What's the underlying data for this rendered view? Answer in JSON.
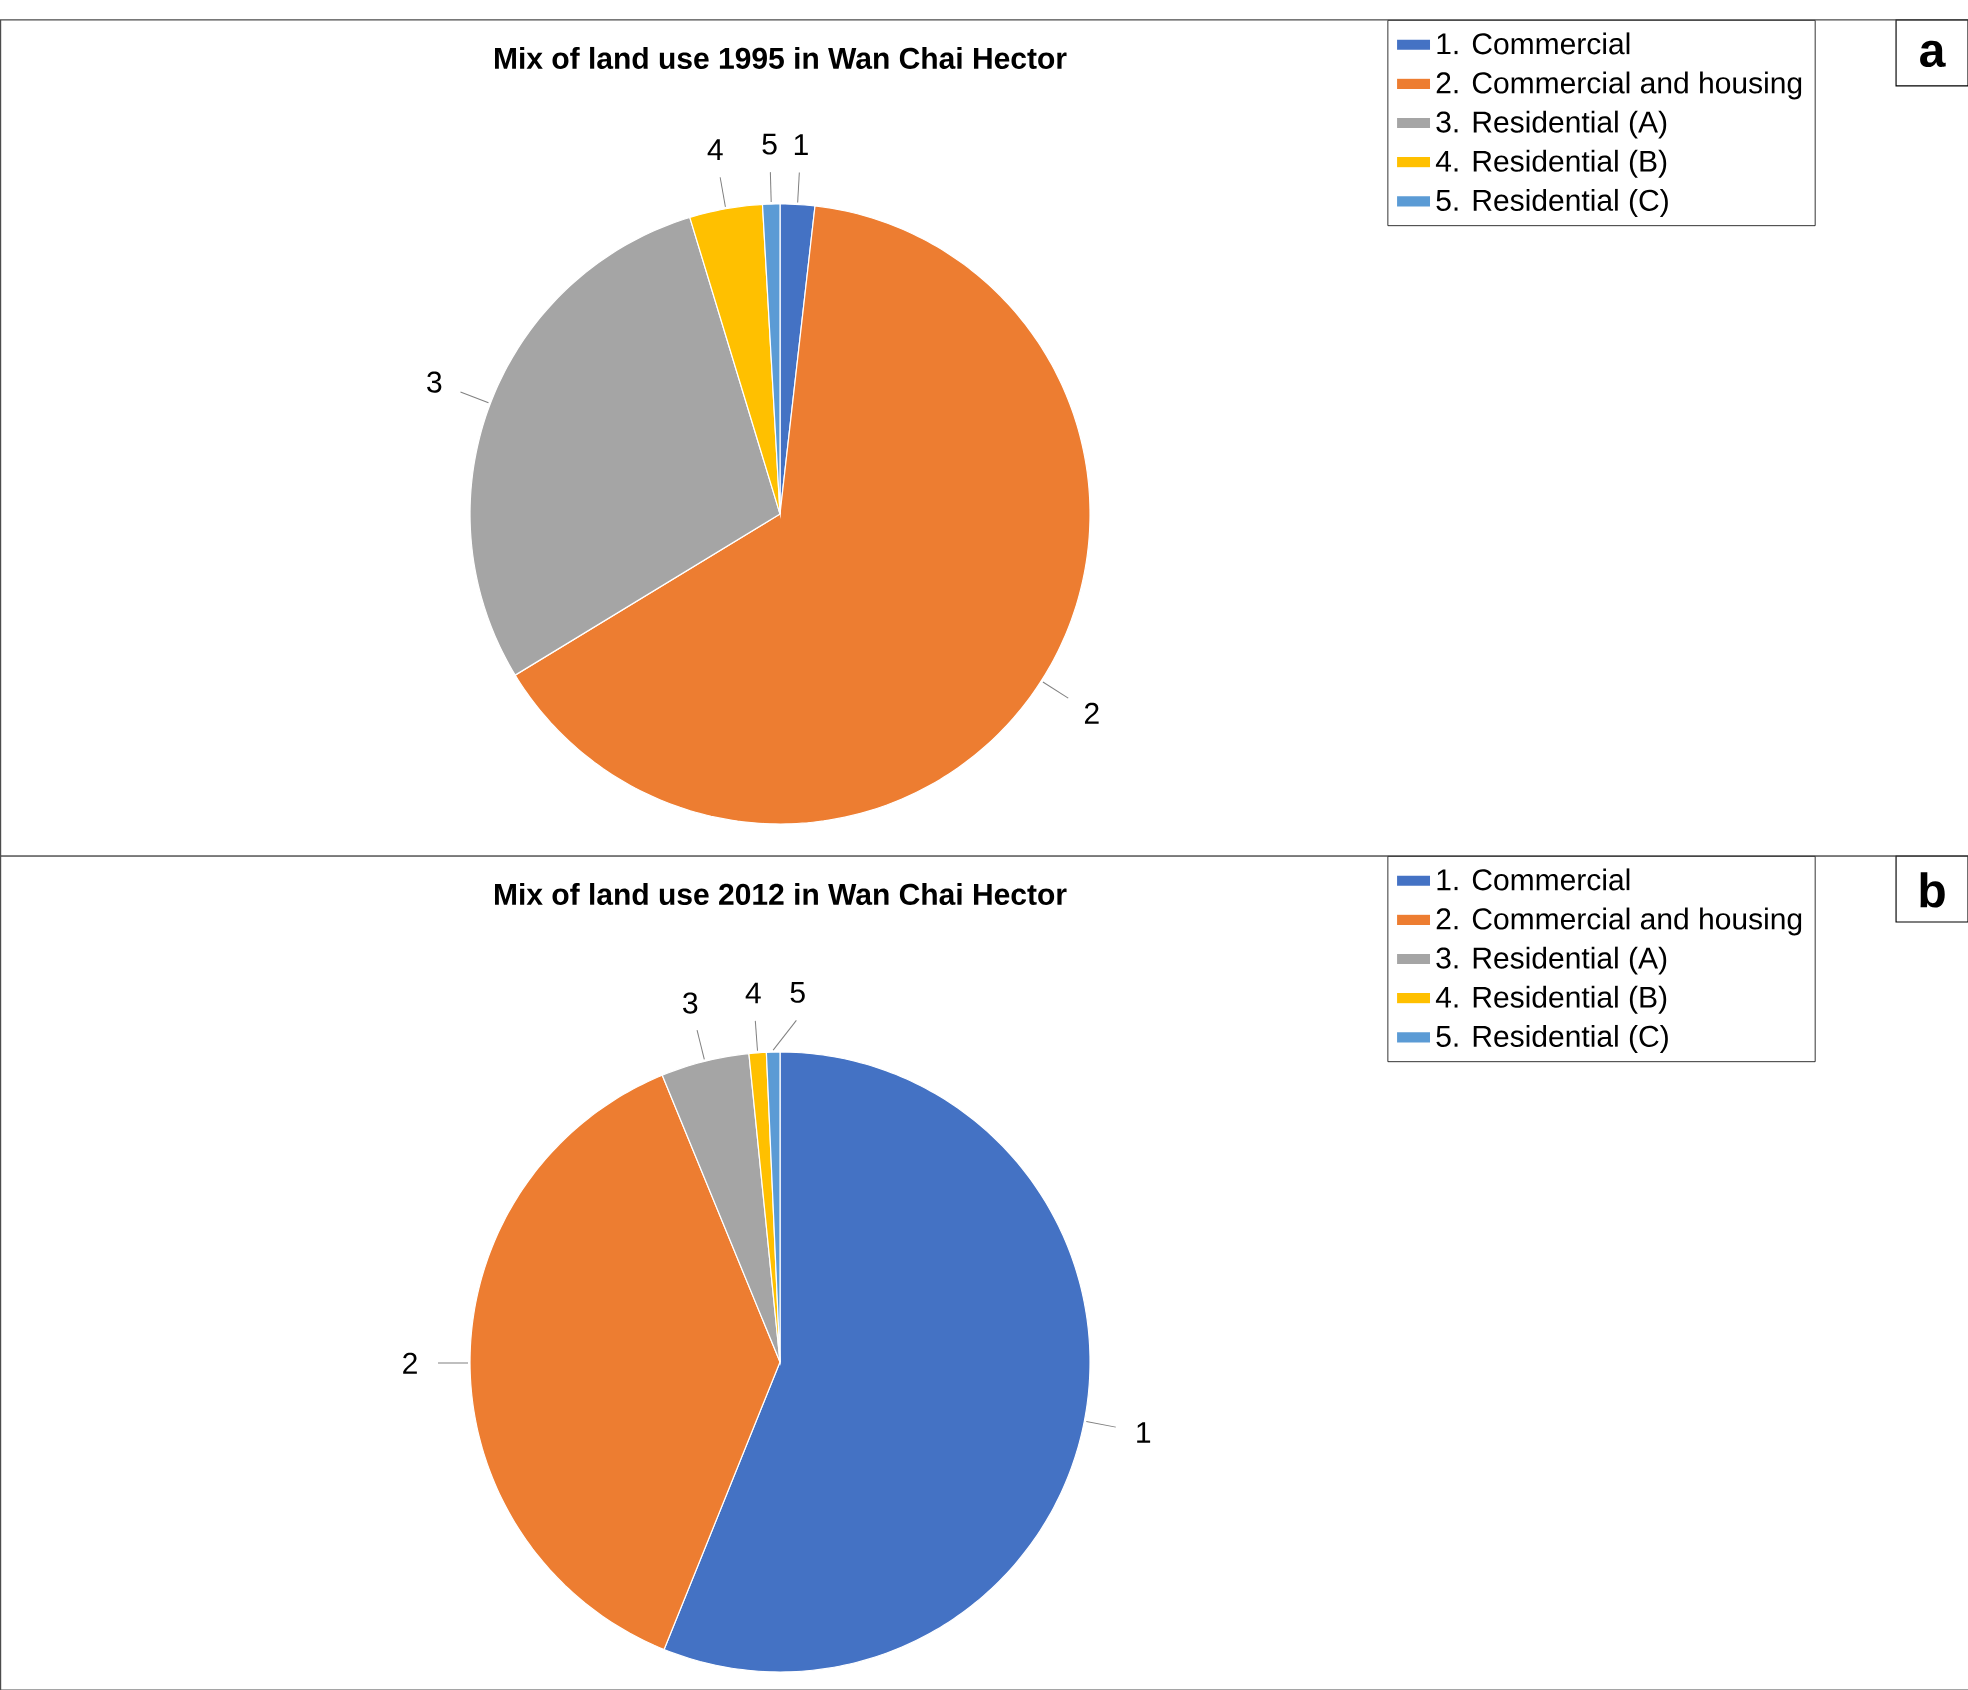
{
  "chart_data": [
    {
      "type": "pie",
      "title": "Mix of land use 1995 in Wan Chai Hector",
      "categories": [
        "1. Commercial",
        "2. Commercial and housing",
        "3. Residential (A)",
        "4. Residential (B)",
        "5. Residential (C)"
      ],
      "values": [
        1.8,
        64.5,
        29.0,
        3.8,
        0.9
      ],
      "colors": [
        "#4472c4",
        "#ed7d31",
        "#a5a5a5",
        "#ffc000",
        "#5b9bd5"
      ],
      "legend": "top right",
      "annotations": [
        "a",
        "1",
        "2",
        "3",
        "4",
        "5"
      ]
    },
    {
      "type": "pie",
      "title": "Mix of land use 2012 in Wan Chai Hector",
      "categories": [
        "1. Commercial",
        "2. Commercial and housing",
        "3. Residential (A)",
        "4. Residential (B)",
        "5. Residential (C)"
      ],
      "values": [
        56.1,
        37.7,
        4.6,
        0.9,
        0.7
      ],
      "colors": [
        "#4472c4",
        "#ed7d31",
        "#a5a5a5",
        "#ffc000",
        "#5b9bd5"
      ],
      "legend": "top right",
      "annotations": [
        "b",
        "1",
        "2",
        "3",
        "4",
        "5"
      ]
    }
  ]
}
